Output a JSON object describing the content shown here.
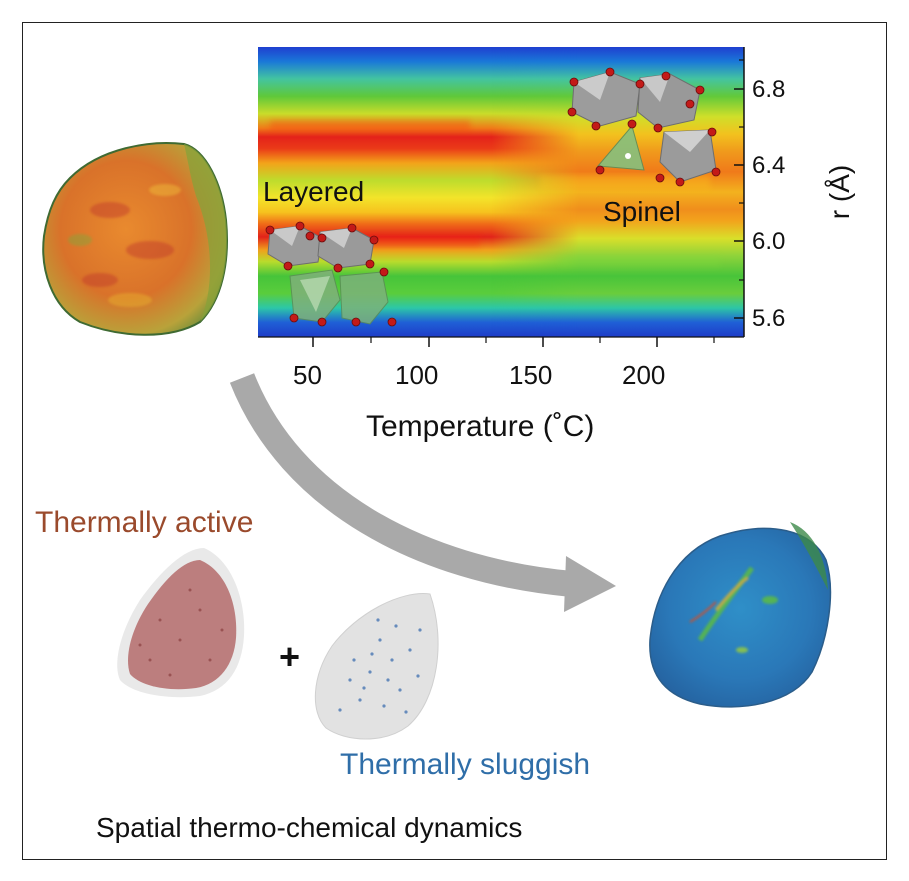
{
  "figure": {
    "heatmap": {
      "xlabel": "Temperature (˚C)",
      "ylabel": "r (Å)",
      "x_ticks": [
        "50",
        "100",
        "150",
        "200"
      ],
      "y_ticks": [
        "5.6",
        "6.0",
        "6.4",
        "6.8"
      ],
      "annotations": {
        "left_phase": "Layered",
        "right_phase": "Spinel"
      }
    },
    "labels": {
      "active": "Thermally active",
      "plus": "+",
      "sluggish": "Thermally sluggish",
      "caption": "Spatial thermo-chemical dynamics"
    },
    "colors": {
      "active_text": "#9a4a2c",
      "sluggish_text": "#2f6ea8",
      "arrow": "#a9a9a9",
      "heat_red": "#e3261a",
      "heat_yellow": "#f4e62a",
      "heat_green": "#39c53a",
      "heat_blue": "#1e4fd0"
    }
  },
  "chart_data": {
    "type": "heatmap",
    "title": "",
    "xlabel": "Temperature (˚C)",
    "ylabel": "r (Å)",
    "xlim": [
      28,
      240
    ],
    "ylim": [
      5.5,
      7.0
    ],
    "x_ticks": [
      50,
      100,
      150,
      200
    ],
    "y_ticks": [
      5.6,
      6.0,
      6.4,
      6.8
    ],
    "colormap": "jet",
    "bands": [
      {
        "r": 6.92,
        "level_low_T": 0.15,
        "level_high_T": 0.15
      },
      {
        "r": 6.8,
        "level_low_T": 0.4,
        "level_high_T": 0.45
      },
      {
        "r": 6.55,
        "level_low_T": 0.95,
        "level_high_T": 0.7
      },
      {
        "r": 6.4,
        "level_low_T": 0.55,
        "level_high_T": 0.85
      },
      {
        "r": 6.25,
        "level_low_T": 0.75,
        "level_high_T": 0.8
      },
      {
        "r": 5.97,
        "level_low_T": 0.95,
        "level_high_T": 0.45
      },
      {
        "r": 5.75,
        "level_low_T": 0.35,
        "level_high_T": 0.35
      },
      {
        "r": 5.58,
        "level_low_T": 0.1,
        "level_high_T": 0.1
      }
    ],
    "transition_temperature": 160
  }
}
